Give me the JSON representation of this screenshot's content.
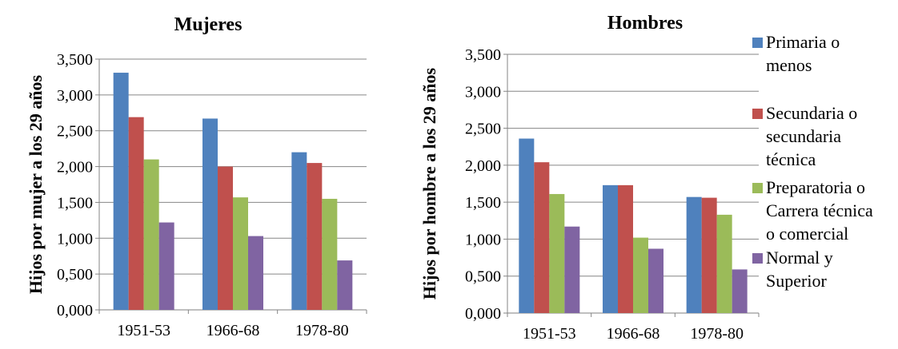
{
  "chart_data": [
    {
      "type": "bar",
      "title": "Mujeres",
      "ylabel": "Hijos por mujer a los 29 años",
      "xlabel": "",
      "categories": [
        "1951-53",
        "1966-68",
        "1978-80"
      ],
      "ylim": [
        0,
        3.5
      ],
      "yticks": [
        "0,000",
        "0,500",
        "1,000",
        "1,500",
        "2,000",
        "2,500",
        "3,000",
        "3,500"
      ],
      "grid": true,
      "series": [
        {
          "name": "Primaria o menos",
          "color": "#4F81BD",
          "values": [
            3.31,
            2.67,
            2.2
          ]
        },
        {
          "name": "Secundaria o secundaria técnica",
          "color": "#C0504D",
          "values": [
            2.69,
            2.0,
            2.05
          ]
        },
        {
          "name": "Preparatoria o Carrera técnica o comercial",
          "color": "#9BBB59",
          "values": [
            2.1,
            1.57,
            1.55
          ]
        },
        {
          "name": "Normal y Superior",
          "color": "#8064A2",
          "values": [
            1.22,
            1.03,
            0.69
          ]
        }
      ]
    },
    {
      "type": "bar",
      "title": "Hombres",
      "ylabel": "Hijos por hombre a los 29 años",
      "xlabel": "",
      "categories": [
        "1951-53",
        "1966-68",
        "1978-80"
      ],
      "ylim": [
        0,
        3.5
      ],
      "yticks": [
        "0,000",
        "0,500",
        "1,000",
        "1,500",
        "2,000",
        "2,500",
        "3,000",
        "3,500"
      ],
      "grid": true,
      "series": [
        {
          "name": "Primaria o menos",
          "color": "#4F81BD",
          "values": [
            2.36,
            1.73,
            1.57
          ]
        },
        {
          "name": "Secundaria o secundaria técnica",
          "color": "#C0504D",
          "values": [
            2.04,
            1.73,
            1.56
          ]
        },
        {
          "name": "Preparatoria o Carrera técnica o comercial",
          "color": "#9BBB59",
          "values": [
            1.61,
            1.02,
            1.33
          ]
        },
        {
          "name": "Normal y Superior",
          "color": "#8064A2",
          "values": [
            1.17,
            0.87,
            0.59
          ]
        }
      ]
    }
  ],
  "legend": {
    "placement": "right",
    "items": [
      {
        "lines": [
          "Primaria o",
          "menos"
        ],
        "color": "#4F81BD"
      },
      {
        "lines": [
          "Secundaria o",
          "secundaria",
          "técnica"
        ],
        "color": "#C0504D"
      },
      {
        "lines": [
          "Preparatoria o",
          "Carrera técnica",
          "o comercial"
        ],
        "color": "#9BBB59"
      },
      {
        "lines": [
          "Normal y",
          "Superior"
        ],
        "color": "#8064A2"
      }
    ]
  }
}
